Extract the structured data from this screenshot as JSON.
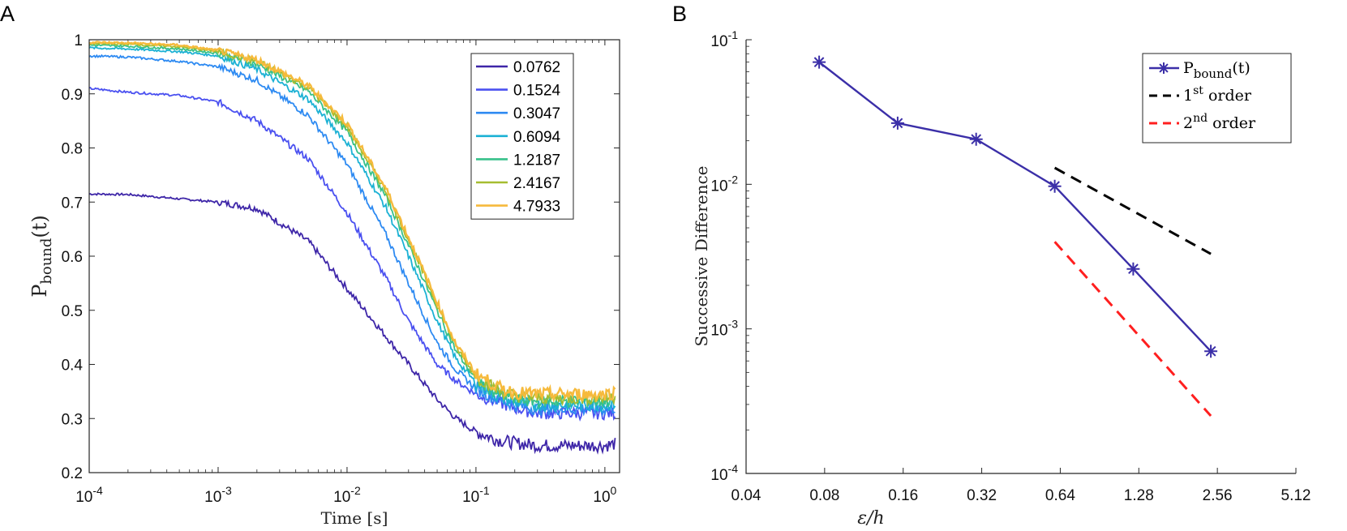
{
  "panels": {
    "a_label": "A",
    "b_label": "B"
  },
  "chart_data": [
    {
      "type": "line",
      "title": "",
      "xlabel": "Time [s]",
      "ylabel": "P_bound(t)",
      "ylabel_base": "P",
      "ylabel_sub": "bound",
      "ylabel_arg": "(t)",
      "xscale": "log",
      "xlim": [
        0.0001,
        1.3
      ],
      "ylim": [
        0.2,
        1.0
      ],
      "x_ticks": [
        {
          "base": "10",
          "exp": "-4",
          "value": 0.0001
        },
        {
          "base": "10",
          "exp": "-3",
          "value": 0.001
        },
        {
          "base": "10",
          "exp": "-2",
          "value": 0.01
        },
        {
          "base": "10",
          "exp": "-1",
          "value": 0.1
        },
        {
          "base": "10",
          "exp": "0",
          "value": 1
        }
      ],
      "y_ticks": [
        "0.2",
        "0.3",
        "0.4",
        "0.5",
        "0.6",
        "0.7",
        "0.8",
        "0.9",
        "1"
      ],
      "legend_position": "top-right",
      "x": [
        0.0001,
        0.0002,
        0.0005,
        0.001,
        0.002,
        0.005,
        0.01,
        0.02,
        0.03,
        0.05,
        0.07,
        0.1,
        0.15,
        0.2,
        0.3,
        0.5,
        0.7,
        1.0,
        1.2
      ],
      "series": [
        {
          "name": "0.0762",
          "color": "#3e26a8",
          "values": [
            0.715,
            0.714,
            0.706,
            0.7,
            0.688,
            0.628,
            0.54,
            0.452,
            0.4,
            0.335,
            0.3,
            0.275,
            0.26,
            0.255,
            0.25,
            0.25,
            0.25,
            0.25,
            0.253
          ]
        },
        {
          "name": "0.1524",
          "color": "#4a50f0",
          "values": [
            0.91,
            0.903,
            0.897,
            0.885,
            0.85,
            0.78,
            0.68,
            0.56,
            0.48,
            0.4,
            0.37,
            0.345,
            0.33,
            0.32,
            0.31,
            0.31,
            0.31,
            0.31,
            0.31
          ]
        },
        {
          "name": "0.3047",
          "color": "#2d8af2",
          "values": [
            0.97,
            0.968,
            0.96,
            0.95,
            0.925,
            0.86,
            0.77,
            0.64,
            0.55,
            0.44,
            0.39,
            0.355,
            0.335,
            0.325,
            0.318,
            0.318,
            0.318,
            0.318,
            0.32
          ]
        },
        {
          "name": "0.6094",
          "color": "#1bb1d4",
          "values": [
            0.985,
            0.983,
            0.978,
            0.97,
            0.945,
            0.89,
            0.81,
            0.69,
            0.6,
            0.48,
            0.41,
            0.365,
            0.34,
            0.33,
            0.325,
            0.325,
            0.325,
            0.325,
            0.328
          ]
        },
        {
          "name": "1.2187",
          "color": "#37c18a",
          "values": [
            0.99,
            0.988,
            0.983,
            0.975,
            0.955,
            0.905,
            0.83,
            0.71,
            0.62,
            0.5,
            0.425,
            0.372,
            0.345,
            0.335,
            0.332,
            0.332,
            0.332,
            0.332,
            0.335
          ]
        },
        {
          "name": "2.4167",
          "color": "#a6bd30",
          "values": [
            0.993,
            0.992,
            0.987,
            0.978,
            0.96,
            0.912,
            0.84,
            0.72,
            0.63,
            0.51,
            0.432,
            0.378,
            0.352,
            0.342,
            0.338,
            0.338,
            0.338,
            0.338,
            0.34
          ]
        },
        {
          "name": "4.7933",
          "color": "#f6ba3c",
          "values": [
            0.995,
            0.994,
            0.99,
            0.98,
            0.963,
            0.915,
            0.845,
            0.725,
            0.635,
            0.515,
            0.437,
            0.383,
            0.357,
            0.348,
            0.345,
            0.345,
            0.345,
            0.345,
            0.348
          ]
        }
      ]
    },
    {
      "type": "line",
      "title": "",
      "xlabel": "ε/h",
      "ylabel": "Successive Difference",
      "xscale": "log",
      "yscale": "log",
      "xlim": [
        0.04,
        5.12
      ],
      "ylim": [
        0.0001,
        0.1
      ],
      "x_ticks": [
        "0.04",
        "0.08",
        "0.16",
        "0.32",
        "0.64",
        "1.28",
        "2.56",
        "5.12"
      ],
      "y_ticks": [
        {
          "base": "10",
          "exp": "-4",
          "value": 0.0001
        },
        {
          "base": "10",
          "exp": "-3",
          "value": 0.001
        },
        {
          "base": "10",
          "exp": "-2",
          "value": 0.01
        },
        {
          "base": "10",
          "exp": "-1",
          "value": 0.1
        }
      ],
      "legend_position": "top-right",
      "legend": [
        {
          "base": "P",
          "sub": "bound",
          "tail": "(t)"
        },
        {
          "base": "1",
          "sup": "st",
          "tail": " order"
        },
        {
          "base": "2",
          "sup": "nd",
          "tail": " order"
        }
      ],
      "series": [
        {
          "name": "P_bound(t)",
          "color": "#3b2fa8",
          "style": "solid-star",
          "x": [
            0.0762,
            0.1524,
            0.3047,
            0.6094,
            1.2187,
            2.4167
          ],
          "values": [
            0.07,
            0.0265,
            0.0205,
            0.0097,
            0.0026,
            0.0007
          ]
        },
        {
          "name": "1st order",
          "color": "#000000",
          "style": "dashed",
          "x": [
            0.6094,
            2.4167
          ],
          "values": [
            0.013,
            0.0033
          ]
        },
        {
          "name": "2nd order",
          "color": "#ff1f1f",
          "style": "dashed",
          "x": [
            0.6094,
            2.4167
          ],
          "values": [
            0.004,
            0.00025
          ]
        }
      ]
    }
  ]
}
